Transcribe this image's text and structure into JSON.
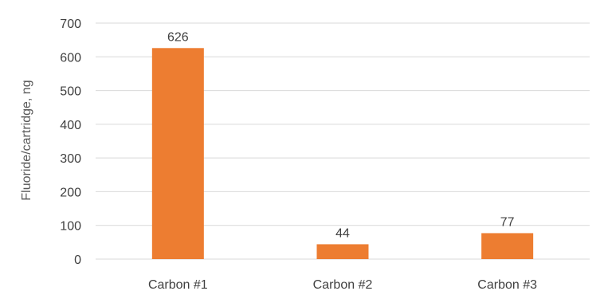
{
  "chart_data": {
    "type": "bar",
    "title": "",
    "xlabel": "",
    "ylabel": "Fluoride/cartridge, ng",
    "categories": [
      "Carbon #1",
      "Carbon #2",
      "Carbon #3"
    ],
    "values": [
      626,
      44,
      77
    ],
    "data_labels": [
      "626",
      "44",
      "77"
    ],
    "ylim": [
      0,
      700
    ],
    "yticks": [
      0,
      100,
      200,
      300,
      400,
      500,
      600,
      700
    ],
    "ytick_labels": [
      "0",
      "100",
      "200",
      "300",
      "400",
      "500",
      "600",
      "700"
    ],
    "grid": true,
    "legend": "none",
    "colors": {
      "bar": "#ed7d31",
      "grid": "#d9d9d9",
      "text": "#404040",
      "axis_title": "#595959"
    }
  }
}
